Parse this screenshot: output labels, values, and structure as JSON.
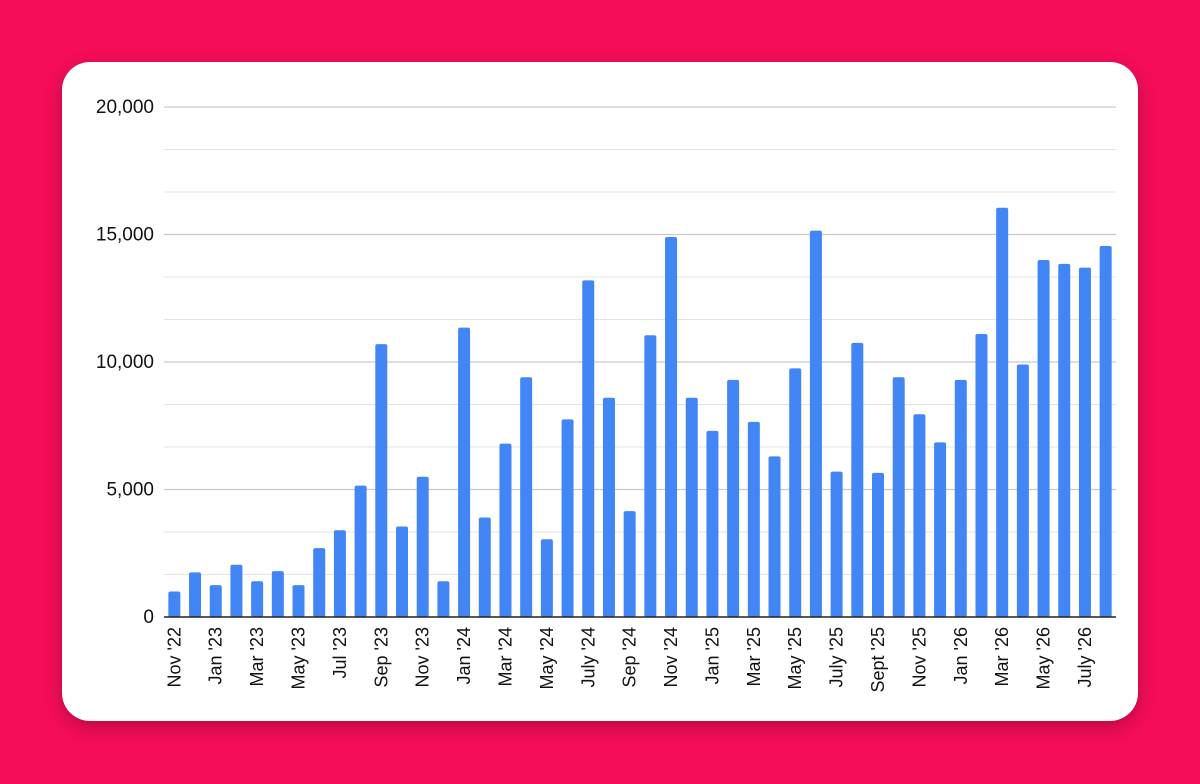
{
  "chart_data": {
    "type": "bar",
    "title": "",
    "xlabel": "",
    "ylabel": "",
    "ylim": [
      0,
      20000
    ],
    "yticks": [
      "0",
      "5,000",
      "10,000",
      "15,000",
      "20,000"
    ],
    "grid": true,
    "bar_color": "#4285f4",
    "categories": [
      "Nov '22",
      "Dec '22",
      "Jan '23",
      "Feb '23",
      "Mar '23",
      "Apr '23",
      "May '23",
      "Jun '23",
      "Jul '23",
      "Aug '23",
      "Sep '23",
      "Oct '23",
      "Nov '23",
      "Dec '23",
      "Jan '24",
      "Feb '24",
      "Mar '24",
      "Apr '24",
      "May '24",
      "Jun '24",
      "July '24",
      "Aug '24",
      "Sep '24",
      "Oct '24",
      "Nov '24",
      "Dec '24",
      "Jan '25",
      "Feb '25",
      "Mar '25",
      "Apr '25",
      "May '25",
      "Jun '25",
      "July '25",
      "Aug '25",
      "Sept '25",
      "Oct '25",
      "Nov '25",
      "Dec '25",
      "Jan '26",
      "Feb '26",
      "Mar '26",
      "Apr '26",
      "May '26",
      "Jun '26",
      "July '26",
      "Aug '26"
    ],
    "tick_labels": [
      "Nov '22",
      "",
      "Jan '23",
      "",
      "Mar '23",
      "",
      "May '23",
      "",
      "Jul '23",
      "",
      "Sep '23",
      "",
      "Nov '23",
      "",
      "Jan '24",
      "",
      "Mar '24",
      "",
      "May '24",
      "",
      "July '24",
      "",
      "Sep '24",
      "",
      "Nov '24",
      "",
      "Jan '25",
      "",
      "Mar '25",
      "",
      "May '25",
      "",
      "July '25",
      "",
      "Sept '25",
      "",
      "Nov '25",
      "",
      "Jan '26",
      "",
      "Mar '26",
      "",
      "May '26",
      "",
      "July '26",
      ""
    ],
    "values": [
      1000,
      1750,
      1250,
      2050,
      1400,
      1800,
      1250,
      2700,
      3400,
      5150,
      10700,
      3550,
      5500,
      1400,
      11350,
      3900,
      6800,
      9400,
      3050,
      7750,
      13200,
      8600,
      4150,
      11050,
      14900,
      8600,
      7300,
      9300,
      7650,
      6300,
      9750,
      15150,
      5700,
      10750,
      5650,
      9400,
      7950,
      6850,
      9300,
      11100,
      16050,
      9900,
      14000,
      13850,
      13700,
      14550
    ]
  }
}
